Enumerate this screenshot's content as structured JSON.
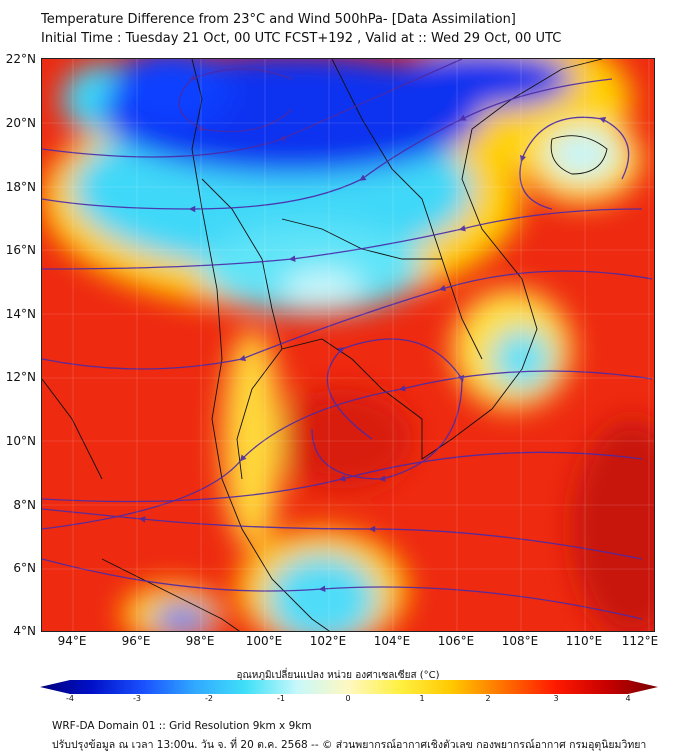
{
  "title": {
    "line1": "Temperature Difference from 23°C and Wind 500hPa- [Data Assimilation]",
    "line2": "Initial Time : Tuesday 21 Oct, 00 UTC FCST+192 , Valid at ::  Wed 29 Oct, 00 UTC"
  },
  "map": {
    "lat_labels": [
      "22°N",
      "20°N",
      "18°N",
      "16°N",
      "14°N",
      "12°N",
      "10°N",
      "8°N",
      "6°N",
      "4°N"
    ],
    "lon_labels": [
      "94°E",
      "96°E",
      "98°E",
      "100°E",
      "102°E",
      "104°E",
      "106°E",
      "108°E",
      "110°E",
      "112°E"
    ],
    "lat_range": [
      4,
      22
    ],
    "lon_range": [
      93,
      112.5
    ]
  },
  "colorbar": {
    "label": "อุณหภูมิเปลี่ยนแปลง หน่วย องศาเซลเซียส (°C)",
    "ticks": [
      "-4",
      "-3",
      "-2",
      "-1",
      "0",
      "1",
      "2",
      "3",
      "4"
    ],
    "range": [
      -4,
      4
    ],
    "colors": [
      "#00007a",
      "#0010c8",
      "#1a50ff",
      "#30a8ff",
      "#40e0f8",
      "#c8f8fa",
      "#fff8c0",
      "#fff040",
      "#ffc800",
      "#ff7000",
      "#ff1a00",
      "#c80000",
      "#780000"
    ]
  },
  "footer": {
    "line1": "WRF-DA Domain 01 :: Grid Resolution 9km x 9km",
    "line2": "ปรับปรุงข้อมูล ณ เวลา 13:00น. วัน จ. ที่ 20 ต.ค. 2568 -- © ส่วนพยากรณ์อากาศเชิงตัวเลข กองพยากรณ์อากาศ กรมอุตุนิยมวิทยา"
  }
}
